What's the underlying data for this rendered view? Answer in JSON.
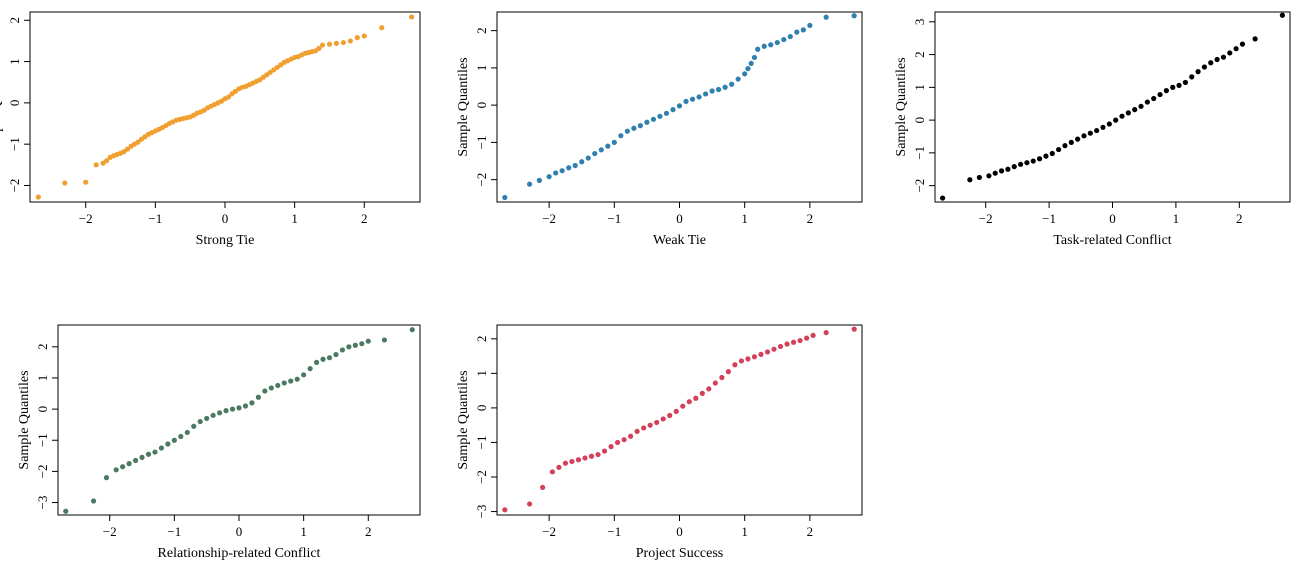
{
  "chart_data": [
    {
      "type": "scatter",
      "xlabel": "Strong Tie",
      "ylabel": "Sample Quantiles",
      "color": "#f0a030",
      "xlim": [
        -2.8,
        2.8
      ],
      "ylim": [
        -2.4,
        2.2
      ],
      "xticks": [
        -2,
        -1,
        0,
        1,
        2
      ],
      "yticks": [
        -2,
        -1,
        0,
        1,
        2
      ],
      "x": [
        -2.68,
        -2.3,
        -2.0,
        -1.85,
        -1.75,
        -1.7,
        -1.65,
        -1.6,
        -1.55,
        -1.5,
        -1.45,
        -1.4,
        -1.35,
        -1.3,
        -1.25,
        -1.2,
        -1.15,
        -1.1,
        -1.05,
        -1.0,
        -0.95,
        -0.9,
        -0.85,
        -0.8,
        -0.75,
        -0.7,
        -0.65,
        -0.6,
        -0.55,
        -0.5,
        -0.45,
        -0.4,
        -0.35,
        -0.3,
        -0.25,
        -0.2,
        -0.15,
        -0.1,
        -0.05,
        0.0,
        0.05,
        0.1,
        0.15,
        0.2,
        0.25,
        0.3,
        0.35,
        0.4,
        0.45,
        0.5,
        0.55,
        0.6,
        0.65,
        0.7,
        0.75,
        0.8,
        0.85,
        0.9,
        0.95,
        1.0,
        1.05,
        1.1,
        1.15,
        1.2,
        1.25,
        1.3,
        1.35,
        1.4,
        1.5,
        1.6,
        1.7,
        1.8,
        1.9,
        2.0,
        2.25,
        2.68
      ],
      "y": [
        -2.28,
        -1.94,
        -1.92,
        -1.5,
        -1.46,
        -1.4,
        -1.32,
        -1.28,
        -1.25,
        -1.22,
        -1.18,
        -1.12,
        -1.05,
        -1.0,
        -0.95,
        -0.88,
        -0.82,
        -0.76,
        -0.72,
        -0.68,
        -0.64,
        -0.6,
        -0.55,
        -0.5,
        -0.46,
        -0.42,
        -0.4,
        -0.38,
        -0.36,
        -0.34,
        -0.3,
        -0.25,
        -0.22,
        -0.18,
        -0.12,
        -0.08,
        -0.04,
        0.0,
        0.04,
        0.1,
        0.14,
        0.22,
        0.28,
        0.34,
        0.38,
        0.4,
        0.44,
        0.48,
        0.52,
        0.56,
        0.62,
        0.68,
        0.74,
        0.8,
        0.86,
        0.92,
        0.98,
        1.02,
        1.06,
        1.1,
        1.12,
        1.16,
        1.2,
        1.22,
        1.24,
        1.26,
        1.32,
        1.4,
        1.42,
        1.44,
        1.46,
        1.5,
        1.58,
        1.62,
        1.82,
        2.08
      ]
    },
    {
      "type": "scatter",
      "xlabel": "Weak Tie",
      "ylabel": "Sample Quantiles",
      "color": "#2f7fb0",
      "xlim": [
        -2.8,
        2.8
      ],
      "ylim": [
        -2.6,
        2.5
      ],
      "xticks": [
        -2,
        -1,
        0,
        1,
        2
      ],
      "yticks": [
        -2,
        -1,
        0,
        1,
        2
      ],
      "x": [
        -2.68,
        -2.3,
        -2.15,
        -2.0,
        -1.9,
        -1.8,
        -1.7,
        -1.6,
        -1.5,
        -1.4,
        -1.3,
        -1.2,
        -1.1,
        -1.0,
        -0.9,
        -0.8,
        -0.7,
        -0.6,
        -0.5,
        -0.4,
        -0.3,
        -0.2,
        -0.1,
        0.0,
        0.1,
        0.2,
        0.3,
        0.4,
        0.5,
        0.6,
        0.7,
        0.8,
        0.9,
        1.0,
        1.05,
        1.1,
        1.15,
        1.2,
        1.3,
        1.4,
        1.5,
        1.6,
        1.7,
        1.8,
        1.9,
        2.0,
        2.25,
        2.68
      ],
      "y": [
        -2.48,
        -2.12,
        -2.02,
        -1.92,
        -1.82,
        -1.76,
        -1.68,
        -1.62,
        -1.52,
        -1.42,
        -1.3,
        -1.2,
        -1.1,
        -1.0,
        -0.82,
        -0.7,
        -0.62,
        -0.55,
        -0.46,
        -0.38,
        -0.3,
        -0.22,
        -0.12,
        -0.02,
        0.1,
        0.16,
        0.22,
        0.3,
        0.38,
        0.42,
        0.48,
        0.56,
        0.7,
        0.84,
        0.98,
        1.12,
        1.28,
        1.5,
        1.58,
        1.62,
        1.68,
        1.76,
        1.84,
        1.96,
        2.02,
        2.14,
        2.36,
        2.4
      ]
    },
    {
      "type": "scatter",
      "xlabel": "Task-related Conflict",
      "ylabel": "Sample Quantiles",
      "color": "#000000",
      "xlim": [
        -2.8,
        2.8
      ],
      "ylim": [
        -2.5,
        3.3
      ],
      "xticks": [
        -2,
        -1,
        0,
        1,
        2
      ],
      "yticks": [
        -2,
        -1,
        0,
        1,
        2,
        3
      ],
      "x": [
        -2.68,
        -2.25,
        -2.1,
        -1.95,
        -1.85,
        -1.75,
        -1.65,
        -1.55,
        -1.45,
        -1.35,
        -1.25,
        -1.15,
        -1.05,
        -0.95,
        -0.85,
        -0.75,
        -0.65,
        -0.55,
        -0.45,
        -0.35,
        -0.25,
        -0.15,
        -0.05,
        0.05,
        0.15,
        0.25,
        0.35,
        0.45,
        0.55,
        0.65,
        0.75,
        0.85,
        0.95,
        1.05,
        1.15,
        1.25,
        1.35,
        1.45,
        1.55,
        1.65,
        1.75,
        1.85,
        1.95,
        2.05,
        2.25,
        2.68
      ],
      "y": [
        -2.38,
        -1.82,
        -1.75,
        -1.7,
        -1.62,
        -1.55,
        -1.5,
        -1.42,
        -1.35,
        -1.3,
        -1.25,
        -1.18,
        -1.1,
        -1.02,
        -0.9,
        -0.78,
        -0.68,
        -0.58,
        -0.48,
        -0.4,
        -0.32,
        -0.22,
        -0.12,
        0.0,
        0.12,
        0.22,
        0.32,
        0.42,
        0.55,
        0.66,
        0.78,
        0.9,
        1.0,
        1.06,
        1.15,
        1.32,
        1.48,
        1.62,
        1.75,
        1.85,
        1.92,
        2.05,
        2.18,
        2.32,
        2.48,
        3.2
      ]
    },
    {
      "type": "scatter",
      "xlabel": "Relationship-related Conflict",
      "ylabel": "Sample Quantiles",
      "color": "#4a7a60",
      "xlim": [
        -2.8,
        2.8
      ],
      "ylim": [
        -3.4,
        2.7
      ],
      "xticks": [
        -2,
        -1,
        0,
        1,
        2
      ],
      "yticks": [
        -3,
        -2,
        -1,
        0,
        1,
        2
      ],
      "x": [
        -2.68,
        -2.25,
        -2.05,
        -1.9,
        -1.8,
        -1.7,
        -1.6,
        -1.5,
        -1.4,
        -1.3,
        -1.2,
        -1.1,
        -1.0,
        -0.9,
        -0.8,
        -0.7,
        -0.6,
        -0.5,
        -0.4,
        -0.3,
        -0.2,
        -0.1,
        0.0,
        0.1,
        0.2,
        0.3,
        0.4,
        0.5,
        0.6,
        0.7,
        0.8,
        0.9,
        1.0,
        1.1,
        1.2,
        1.3,
        1.4,
        1.5,
        1.6,
        1.7,
        1.8,
        1.9,
        2.0,
        2.25,
        2.68
      ],
      "y": [
        -3.28,
        -2.95,
        -2.2,
        -1.95,
        -1.85,
        -1.75,
        -1.65,
        -1.55,
        -1.45,
        -1.38,
        -1.25,
        -1.12,
        -1.0,
        -0.88,
        -0.75,
        -0.55,
        -0.4,
        -0.3,
        -0.2,
        -0.12,
        -0.05,
        0.0,
        0.04,
        0.1,
        0.2,
        0.38,
        0.58,
        0.68,
        0.76,
        0.84,
        0.9,
        0.96,
        1.1,
        1.3,
        1.5,
        1.6,
        1.65,
        1.75,
        1.9,
        2.0,
        2.05,
        2.1,
        2.18,
        2.22,
        2.55
      ]
    },
    {
      "type": "scatter",
      "xlabel": "Project Success",
      "ylabel": "Sample Quantiles",
      "color": "#d4405a",
      "xlim": [
        -2.8,
        2.8
      ],
      "ylim": [
        -3.1,
        2.4
      ],
      "xticks": [
        -2,
        -1,
        0,
        1,
        2
      ],
      "yticks": [
        -3,
        -2,
        -1,
        0,
        1,
        2
      ],
      "x": [
        -2.68,
        -2.3,
        -2.1,
        -1.95,
        -1.85,
        -1.75,
        -1.65,
        -1.55,
        -1.45,
        -1.35,
        -1.25,
        -1.15,
        -1.05,
        -0.95,
        -0.85,
        -0.75,
        -0.65,
        -0.55,
        -0.45,
        -0.35,
        -0.25,
        -0.15,
        -0.05,
        0.05,
        0.15,
        0.25,
        0.35,
        0.45,
        0.55,
        0.65,
        0.75,
        0.85,
        0.95,
        1.05,
        1.15,
        1.25,
        1.35,
        1.45,
        1.55,
        1.65,
        1.75,
        1.85,
        1.95,
        2.05,
        2.25,
        2.68
      ],
      "y": [
        -2.95,
        -2.78,
        -2.3,
        -1.85,
        -1.72,
        -1.6,
        -1.55,
        -1.5,
        -1.45,
        -1.4,
        -1.35,
        -1.25,
        -1.12,
        -1.0,
        -0.92,
        -0.82,
        -0.68,
        -0.58,
        -0.5,
        -0.42,
        -0.32,
        -0.22,
        -0.1,
        0.05,
        0.18,
        0.28,
        0.42,
        0.55,
        0.72,
        0.88,
        1.05,
        1.25,
        1.36,
        1.42,
        1.48,
        1.55,
        1.62,
        1.7,
        1.78,
        1.85,
        1.9,
        1.95,
        2.02,
        2.1,
        2.18,
        2.28
      ]
    }
  ]
}
